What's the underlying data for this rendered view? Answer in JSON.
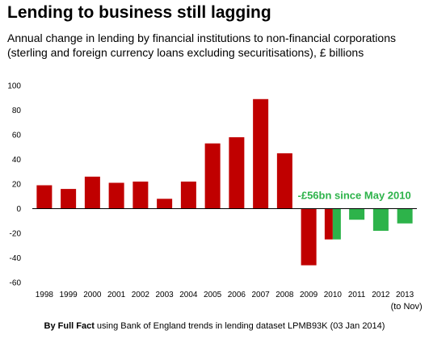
{
  "header": {
    "title": "Lending to business still lagging",
    "subtitle": "Annual change in lending by financial institutions to non-financial corporations (sterling and foreign currency loans excluding securitisations), £ billions"
  },
  "footer": {
    "credit_bold": "By Full Fact",
    "credit_rest": " using Bank of England trends in lending dataset LPMB93K (03 Jan 2014)"
  },
  "chart_data": {
    "type": "bar",
    "categories": [
      "1998",
      "1999",
      "2000",
      "2001",
      "2002",
      "2003",
      "2004",
      "2005",
      "2006",
      "2007",
      "2008",
      "2009",
      "2010",
      "2011",
      "2012",
      "2013"
    ],
    "category_note": "(to Nov)",
    "series": [
      {
        "values": [
          19,
          16,
          26,
          21,
          22,
          8,
          22,
          53,
          58,
          89,
          45,
          -46,
          -25,
          null,
          null,
          null
        ],
        "color": "#c00000"
      },
      {
        "values": [
          null,
          null,
          null,
          null,
          null,
          null,
          null,
          null,
          null,
          null,
          null,
          null,
          -25,
          -9,
          -18,
          -12
        ],
        "color": "#2db34a"
      }
    ],
    "yticks": [
      100,
      80,
      60,
      40,
      20,
      0,
      -20,
      -40,
      -60
    ],
    "ylim": [
      -60,
      100
    ],
    "annotation": {
      "text": "-£56bn since May 2010",
      "color": "#2db34a"
    },
    "grid": false,
    "legend": "none"
  }
}
